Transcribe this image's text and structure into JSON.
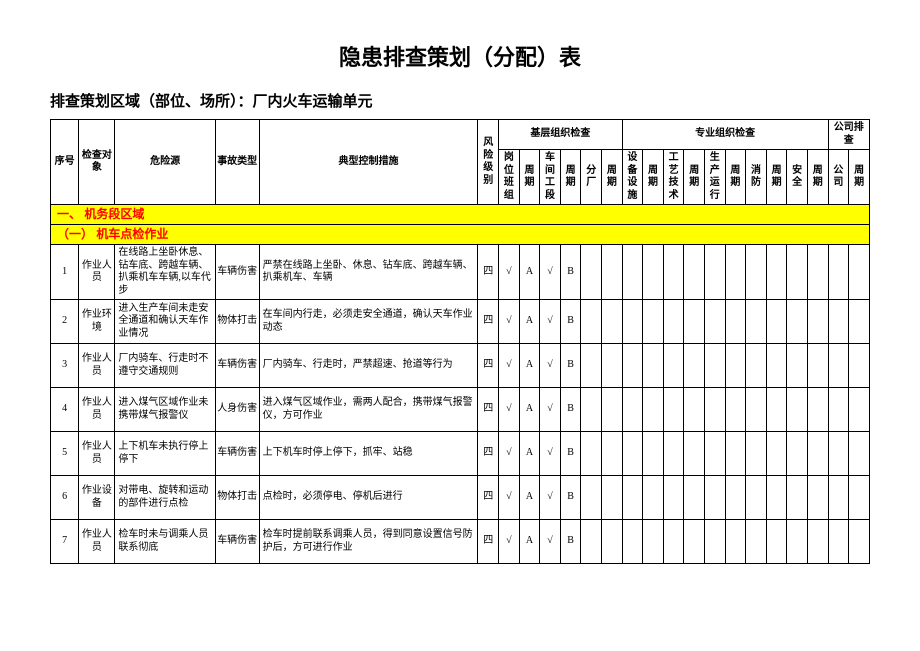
{
  "title": "隐患排查策划（分配）表",
  "subtitle": "排查策划区域（部位、场所）：厂内火车运输单元",
  "header": {
    "seq": "序号",
    "obj": "检查对象",
    "src": "危险源",
    "type": "事故类型",
    "ctrl": "典型控制措施",
    "lvl": "风险级别",
    "grp_basic": "基层组织检查",
    "grp_pro": "专业组织检查",
    "grp_co": "公司排查",
    "c": {
      "g1": "岗位班组",
      "p1": "周期",
      "g2": "车间工段",
      "p2": "周期",
      "g3": "分厂",
      "p3": "周期",
      "g4": "设备设施",
      "p4": "周期",
      "g5": "工艺技术",
      "p5": "周期",
      "g6": "生产运行",
      "p6": "周期",
      "g7": "消防",
      "p7": "周期",
      "g8": "安全",
      "p8": "周期",
      "g9": "公司",
      "p9": "周期"
    }
  },
  "sections": {
    "s1": "一、 机务段区域",
    "s2": "（一） 机车点检作业"
  },
  "rows": [
    {
      "n": "1",
      "obj": "作业人员",
      "src": "在线路上坐卧休息、钻车底、跨越车辆、扒乘机车车辆,以车代步",
      "type": "车辆伤害",
      "ctrl": "严禁在线路上坐卧、休息、钻车底、跨越车辆、扒乘机车、车辆",
      "lvl": "四",
      "c1": "√",
      "c2": "A",
      "c3": "√",
      "c4": "B"
    },
    {
      "n": "2",
      "obj": "作业环境",
      "src": "进入生产车间未走安全通道和确认天车作业情况",
      "type": "物体打击",
      "ctrl": "在车间内行走，必须走安全通道，确认天车作业动态",
      "lvl": "四",
      "c1": "√",
      "c2": "A",
      "c3": "√",
      "c4": "B"
    },
    {
      "n": "3",
      "obj": "作业人员",
      "src": "厂内骑车、行走时不遵守交通规则",
      "type": "车辆伤害",
      "ctrl": "厂内骑车、行走时，严禁超速、抢道等行为",
      "lvl": "四",
      "c1": "√",
      "c2": "A",
      "c3": "√",
      "c4": "B"
    },
    {
      "n": "4",
      "obj": "作业人员",
      "src": "进入煤气区域作业未携带煤气报警仪",
      "type": "人身伤害",
      "ctrl": "进入煤气区域作业，需两人配合，携带煤气报警仪，方可作业",
      "lvl": "四",
      "c1": "√",
      "c2": "A",
      "c3": "√",
      "c4": "B"
    },
    {
      "n": "5",
      "obj": "作业人员",
      "src": "上下机车未执行停上停下",
      "type": "车辆伤害",
      "ctrl": "上下机车时停上停下，抓牢、站稳",
      "lvl": "四",
      "c1": "√",
      "c2": "A",
      "c3": "√",
      "c4": "B"
    },
    {
      "n": "6",
      "obj": "作业设备",
      "src": "对带电、旋转和运动的部件进行点检",
      "type": "物体打击",
      "ctrl": "点检时，必须停电、停机后进行",
      "lvl": "四",
      "c1": "√",
      "c2": "A",
      "c3": "√",
      "c4": "B"
    },
    {
      "n": "7",
      "obj": "作业人员",
      "src": "检车时未与调乘人员联系彻底",
      "type": "车辆伤害",
      "ctrl": "检车时提前联系调乘人员，得到同意设置信号防护后，方可进行作业",
      "lvl": "四",
      "c1": "√",
      "c2": "A",
      "c3": "√",
      "c4": "B"
    }
  ]
}
